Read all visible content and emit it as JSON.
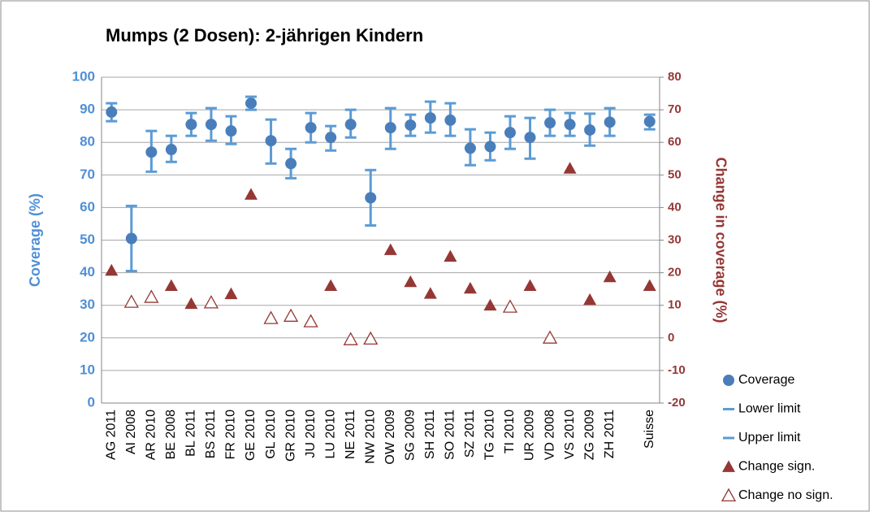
{
  "chart_data": {
    "type": "error_scatter",
    "title": "Mumps (2 Dosen): 2-jährigen Kindern",
    "ylabel": "Coverage (%)",
    "y2label": "Change in coverage (%)",
    "categories": [
      "AG 2011",
      "AI 2008",
      "AR 2010",
      "BE 2008",
      "BL 2011",
      "BS 2011",
      "FR 2010",
      "GE 2010",
      "GL 2010",
      "GR 2010",
      "JU 2010",
      "LU 2010",
      "NE 2011",
      "NW 2010",
      "OW 2009",
      "SG 2009",
      "SH 2011",
      "SO 2011",
      "SZ 2011",
      "TG 2010",
      "TI 2010",
      "UR 2009",
      "VD 2008",
      "VS 2010",
      "ZG 2009",
      "ZH 2011",
      null,
      "Suisse"
    ],
    "series": [
      {
        "name": "Coverage",
        "color": "#4a7ebb",
        "marker": "circle",
        "values": [
          89.3,
          50.5,
          77,
          77.8,
          85.5,
          85.5,
          83.5,
          92,
          80.5,
          73.5,
          84.5,
          81.5,
          85.5,
          63,
          84.5,
          85.3,
          87.5,
          86.8,
          78.2,
          78.7,
          83,
          81.5,
          86,
          85.5,
          83.8,
          86.2,
          null,
          86.4
        ]
      },
      {
        "name": "Lower limit",
        "color": "#5b9bd5",
        "marker": "dash",
        "values": [
          86.5,
          40.5,
          71,
          74,
          82,
          80.5,
          79.5,
          90,
          73.5,
          69,
          80,
          77.5,
          81.5,
          54.5,
          78,
          82,
          83,
          82,
          73,
          74.5,
          78,
          75,
          82,
          82,
          79,
          82,
          null,
          84
        ]
      },
      {
        "name": "Upper limit",
        "color": "#5b9bd5",
        "marker": "dash",
        "values": [
          92,
          60.5,
          83.5,
          82,
          89,
          90.5,
          88,
          94,
          87,
          78,
          89,
          85,
          90,
          71.5,
          90.5,
          88.5,
          92.5,
          92,
          84,
          83,
          88,
          87.5,
          90,
          89,
          88.8,
          90.5,
          null,
          88.5
        ]
      },
      {
        "name": "Change sign.",
        "color": "#953735",
        "marker": "triangle",
        "axis": "y2",
        "values": [
          20.7,
          null,
          null,
          16,
          10.5,
          null,
          13.5,
          44,
          null,
          null,
          null,
          16,
          null,
          null,
          27,
          17.2,
          13.6,
          25,
          15.2,
          10,
          null,
          16,
          null,
          52,
          11.7,
          18.7,
          null,
          16
        ]
      },
      {
        "name": "Change no sign.",
        "color": "#953735",
        "marker": "triangle-open",
        "axis": "y2",
        "values": [
          null,
          11,
          12.5,
          null,
          null,
          10.8,
          null,
          null,
          6,
          6.7,
          5,
          null,
          -0.5,
          -0.3,
          null,
          null,
          null,
          null,
          null,
          null,
          9.5,
          null,
          0,
          null,
          null,
          null,
          null,
          null
        ]
      }
    ],
    "ylim": [
      0,
      100
    ],
    "yticks": [
      0,
      10,
      20,
      30,
      40,
      50,
      60,
      70,
      80,
      90,
      100
    ],
    "y2lim": [
      -20,
      80
    ],
    "y2ticks": [
      -20,
      -10,
      0,
      10,
      20,
      30,
      40,
      50,
      60,
      70,
      80
    ],
    "ycolor": "#4f8fd6",
    "y2color": "#953735",
    "grid": true,
    "legend": "right"
  }
}
